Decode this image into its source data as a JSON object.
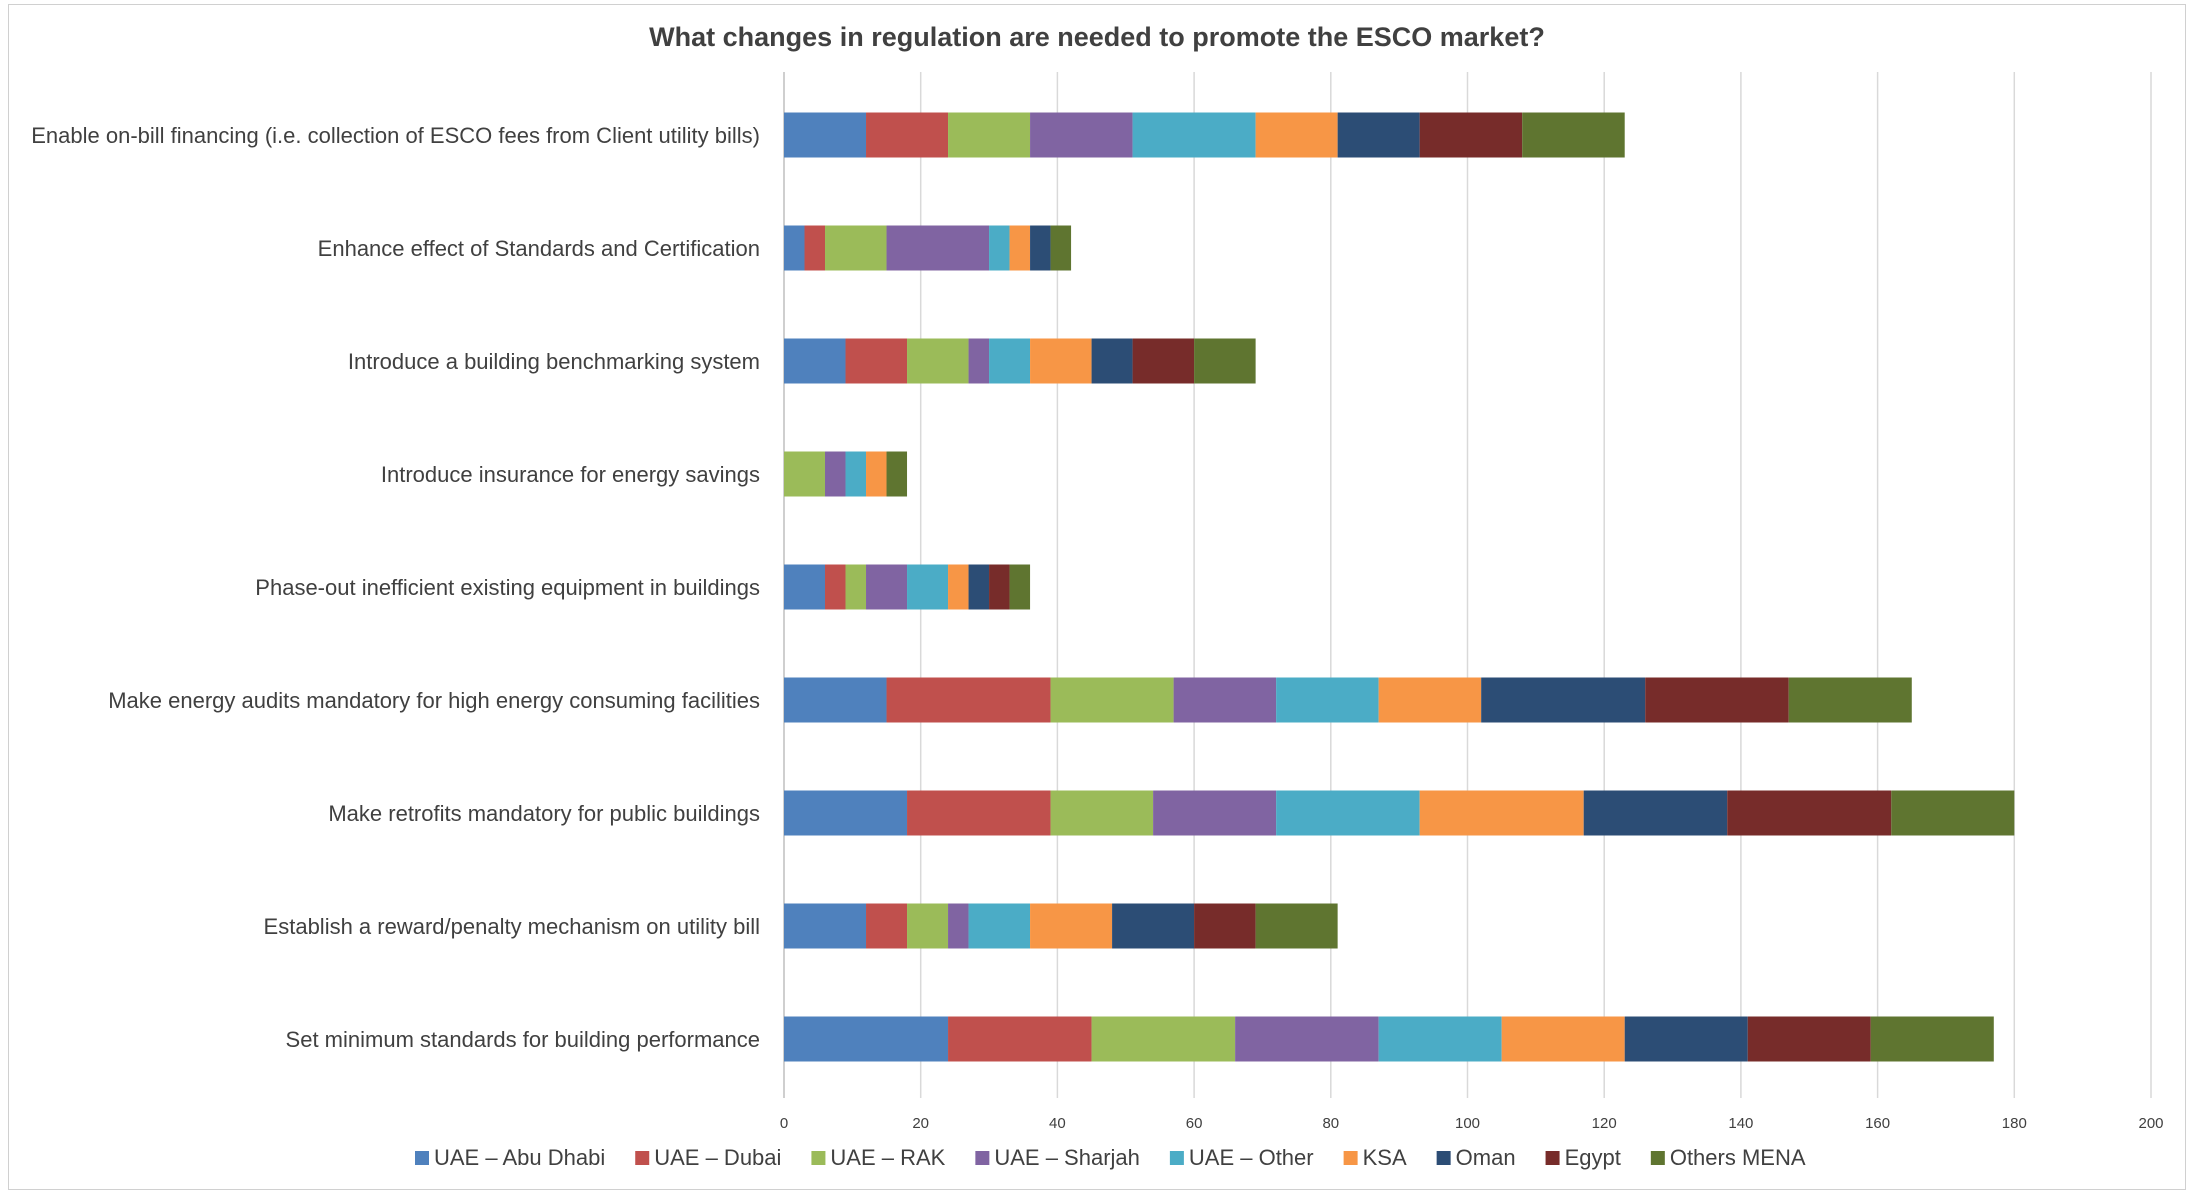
{
  "chart_data": {
    "type": "bar",
    "orientation": "horizontal",
    "stacked": true,
    "title": "What changes in regulation are needed to promote the ESCO market?",
    "xlabel": "",
    "ylabel": "",
    "xlim": [
      0,
      200
    ],
    "xticks": [
      0,
      20,
      40,
      60,
      80,
      100,
      120,
      140,
      160,
      180,
      200
    ],
    "grid": "vertical",
    "legend_position": "bottom",
    "categories": [
      "Enable on-bill financing (i.e. collection of ESCO fees from Client utility bills)",
      "Enhance effect of Standards and Certification",
      "Introduce a building benchmarking system",
      "Introduce insurance for energy savings",
      "Phase-out inefficient existing equipment in buildings",
      "Make energy audits mandatory for high energy consuming facilities",
      "Make retrofits mandatory for public buildings",
      "Establish a reward/penalty mechanism on utility bill",
      "Set minimum standards for building performance"
    ],
    "series": [
      {
        "name": "UAE – Abu Dhabi",
        "color": "#4f81bd",
        "values": [
          12,
          3,
          9,
          0,
          6,
          15,
          18,
          12,
          24
        ]
      },
      {
        "name": "UAE – Dubai",
        "color": "#c0504d",
        "values": [
          12,
          3,
          9,
          0,
          3,
          24,
          21,
          6,
          21
        ]
      },
      {
        "name": "UAE – RAK",
        "color": "#9bbb59",
        "values": [
          12,
          9,
          9,
          6,
          3,
          18,
          15,
          6,
          21
        ]
      },
      {
        "name": "UAE – Sharjah",
        "color": "#8064a2",
        "values": [
          15,
          15,
          3,
          3,
          6,
          15,
          18,
          3,
          21
        ]
      },
      {
        "name": "UAE – Other",
        "color": "#4bacc6",
        "values": [
          18,
          3,
          6,
          3,
          6,
          15,
          21,
          9,
          18
        ]
      },
      {
        "name": "KSA",
        "color": "#f79646",
        "values": [
          12,
          3,
          9,
          3,
          3,
          15,
          24,
          12,
          18
        ]
      },
      {
        "name": "Oman",
        "color": "#2c4d75",
        "values": [
          12,
          3,
          6,
          0,
          3,
          24,
          21,
          12,
          18
        ]
      },
      {
        "name": "Egypt",
        "color": "#772c2a",
        "values": [
          15,
          0,
          9,
          0,
          3,
          21,
          24,
          9,
          18
        ]
      },
      {
        "name": "Others MENA",
        "color": "#5f7530",
        "values": [
          15,
          3,
          9,
          3,
          3,
          18,
          18,
          12,
          18
        ]
      }
    ]
  }
}
